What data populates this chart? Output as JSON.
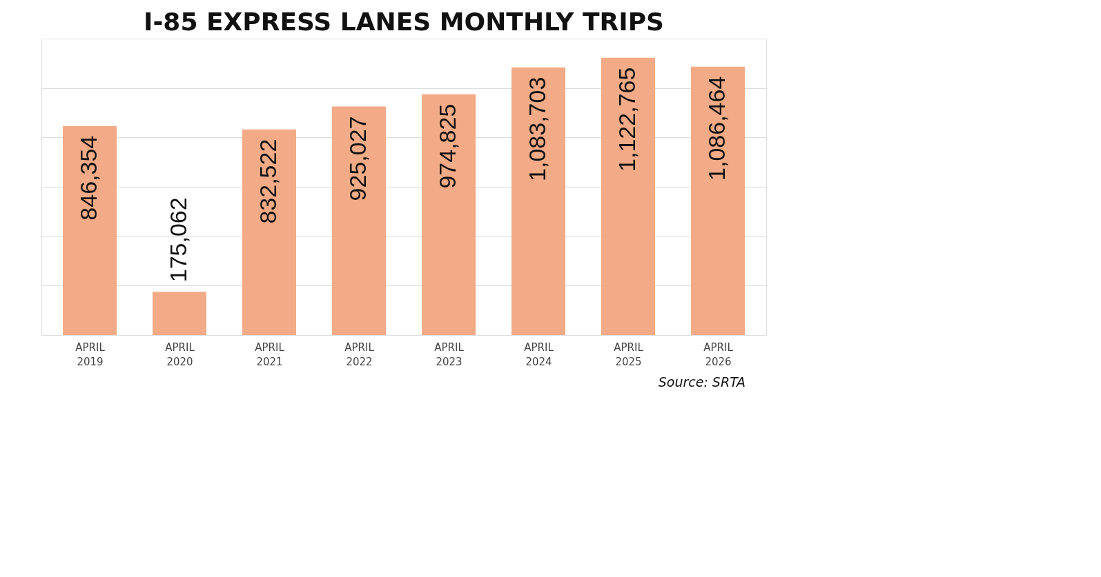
{
  "chart_data": {
    "type": "bar",
    "title": "I-85 EXPRESS LANES MONTHLY TRIPS",
    "categories": [
      "APRIL 2019",
      "APRIL 2020",
      "APRIL 2021",
      "APRIL 2022",
      "APRIL 2023",
      "APRIL 2024",
      "APRIL 2025",
      "APRIL 2026"
    ],
    "values": [
      846354,
      175062,
      832522,
      925027,
      974825,
      1083703,
      1122765,
      1086464
    ],
    "value_labels": [
      "846,354",
      "175,062",
      "832,522",
      "925,027",
      "974,825",
      "1,083,703",
      "1,122,765",
      "1,086,464"
    ],
    "color": "#f2ab86",
    "tick_labels": "x",
    "grid": "y",
    "annotations": [
      "Source: SRTA"
    ]
  }
}
